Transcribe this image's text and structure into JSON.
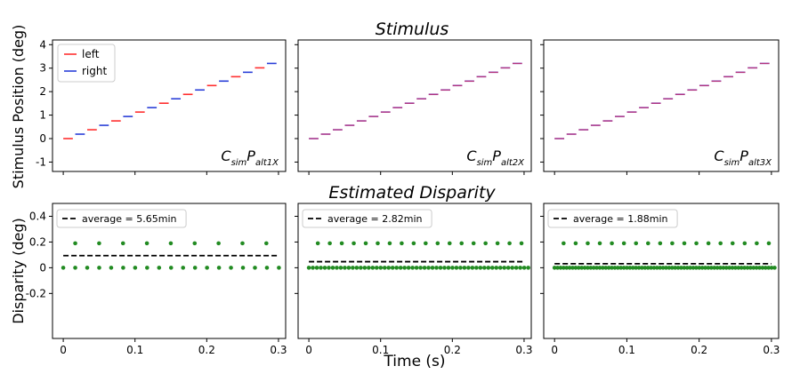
{
  "figure": {
    "row_titles": [
      "Stimulus",
      "Estimated Disparity"
    ],
    "xlabel": "Time (s)",
    "top_ylabel": "Stimulus Position (deg)",
    "bottom_ylabel": "Disparity (deg)",
    "legend": {
      "left": "left",
      "right": "right"
    }
  },
  "chart_data": [
    {
      "type": "line",
      "panel": "top-1",
      "title": "Stimulus",
      "xlabel": "",
      "ylabel": "Stimulus Position (deg)",
      "xlim": [
        -0.015,
        0.31
      ],
      "ylim": [
        -1.4,
        4.2
      ],
      "yticks": [
        -1,
        0,
        1,
        2,
        3,
        4
      ],
      "annotation": {
        "main": "C",
        "sub1": "sim",
        "mid": "P",
        "sub2": "alt1X"
      },
      "step_count": 18,
      "step_duration_s": 0.0167,
      "step_deg": 0.1883,
      "step_start_s": 0,
      "legend_position": "top-left",
      "series": [
        {
          "name": "left",
          "color": "#ff3030",
          "pattern": "even-steps"
        },
        {
          "name": "right",
          "color": "#2a3fd8",
          "pattern": "odd-steps"
        }
      ]
    },
    {
      "type": "line",
      "panel": "top-2",
      "xlim": [
        -0.015,
        0.31
      ],
      "ylim": [
        -1.4,
        4.2
      ],
      "annotation": {
        "main": "C",
        "sub1": "sim",
        "mid": "P",
        "sub2": "alt2X"
      },
      "step_count": 18,
      "step_duration_s": 0.0167,
      "step_deg": 0.1883,
      "step_start_s": 0,
      "series": [
        {
          "name": "left",
          "color": "#ff3030"
        },
        {
          "name": "right",
          "color": "#2a3fd8"
        }
      ]
    },
    {
      "type": "line",
      "panel": "top-3",
      "xlim": [
        -0.015,
        0.31
      ],
      "ylim": [
        -1.4,
        4.2
      ],
      "annotation": {
        "main": "C",
        "sub1": "sim",
        "mid": "P",
        "sub2": "alt3X"
      },
      "step_count": 18,
      "step_duration_s": 0.0167,
      "step_deg": 0.1883,
      "step_start_s": 0,
      "series": [
        {
          "name": "left",
          "color": "#ff3030"
        },
        {
          "name": "right",
          "color": "#2a3fd8"
        }
      ]
    },
    {
      "type": "scatter",
      "panel": "bottom-1",
      "title": "Estimated Disparity",
      "xlabel": "",
      "ylabel": "Disparity (deg)",
      "xlim": [
        -0.015,
        0.31
      ],
      "ylim": [
        -0.55,
        0.5
      ],
      "xticks": [
        0,
        0.1,
        0.2,
        0.3
      ],
      "xticklabels": [
        "0",
        "0.1",
        "0.2",
        "0.3"
      ],
      "yticks": [
        -0.2,
        0,
        0.2,
        0.4
      ],
      "yticklabels": [
        "-0.2",
        "0",
        "0.2",
        "0.4"
      ],
      "legend_position": "top-left",
      "average_label": "average = 5.65min",
      "average_value": 0.094,
      "dot_color": "#228b22",
      "high_value": 0.19,
      "high_x_start": 0.0167,
      "high_x_step": 0.0333,
      "high_count": 10,
      "zero_x_start": 0,
      "zero_x_step": 0.0167,
      "zero_count": 19
    },
    {
      "type": "scatter",
      "panel": "bottom-2",
      "xlim": [
        -0.015,
        0.31
      ],
      "ylim": [
        -0.55,
        0.5
      ],
      "xticks": [
        0,
        0.1,
        0.2,
        0.3
      ],
      "xticklabels": [
        "0",
        "0.1",
        "0.2",
        "0.3"
      ],
      "average_label": "average = 2.82min",
      "average_value": 0.047,
      "dot_color": "#228b22",
      "high_value": 0.19,
      "high_x_start": 0.0125,
      "high_x_step": 0.0167,
      "high_count": 18,
      "zero_x_start": 0,
      "zero_x_step": 0.00556,
      "zero_count": 56
    },
    {
      "type": "scatter",
      "panel": "bottom-3",
      "xlim": [
        -0.015,
        0.31
      ],
      "ylim": [
        -0.55,
        0.5
      ],
      "xticks": [
        0,
        0.1,
        0.2,
        0.3
      ],
      "xticklabels": [
        "0",
        "0.1",
        "0.2",
        "0.3"
      ],
      "average_label": "average = 1.88min",
      "average_value": 0.031,
      "dot_color": "#228b22",
      "high_value": 0.19,
      "high_x_start": 0.0125,
      "high_x_step": 0.0167,
      "high_count": 18,
      "zero_x_start": 0,
      "zero_x_step": 0.00417,
      "zero_count": 74
    }
  ]
}
